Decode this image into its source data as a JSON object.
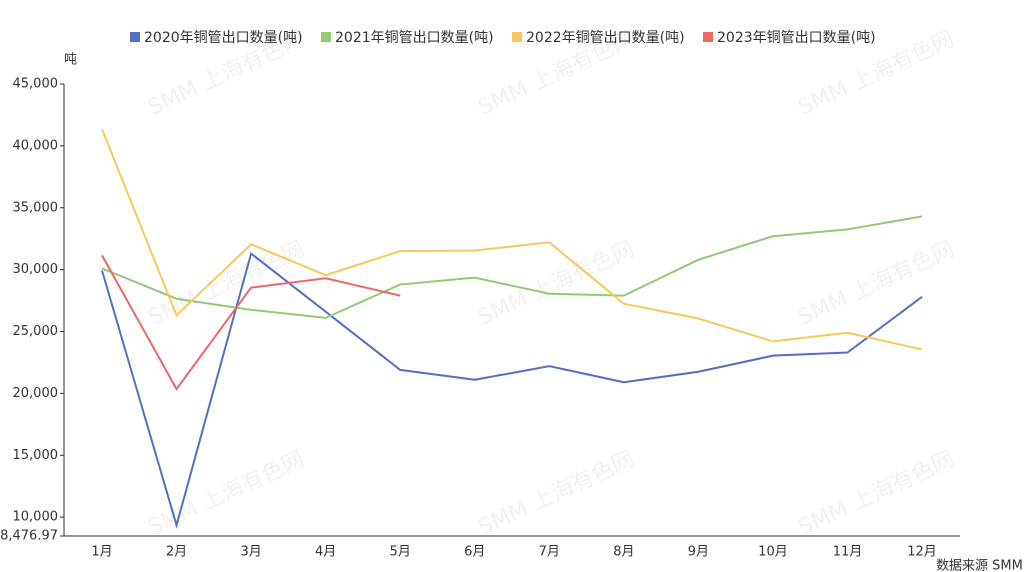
{
  "chart_data": {
    "type": "line",
    "y_axis_label": "吨",
    "source": "数据来源 SMM",
    "watermark": "SMM 上海有色网",
    "categories": [
      "1月",
      "2月",
      "3月",
      "4月",
      "5月",
      "6月",
      "7月",
      "8月",
      "9月",
      "10月",
      "11月",
      "12月"
    ],
    "series": [
      {
        "name": "2020年铜管出口数量(吨)",
        "color": "#5470c6",
        "values": [
          29930,
          9350,
          31300,
          26600,
          21900,
          21100,
          22200,
          20900,
          21750,
          23050,
          23300,
          27800
        ]
      },
      {
        "name": "2021年铜管出口数量(吨)",
        "color": "#91cc75",
        "values": [
          30100,
          27650,
          26750,
          26100,
          28800,
          29350,
          28050,
          27900,
          30800,
          32700,
          33250,
          34300
        ]
      },
      {
        "name": "2022年铜管出口数量(吨)",
        "color": "#fac858",
        "values": [
          41350,
          26300,
          32050,
          29550,
          31500,
          31550,
          32200,
          27250,
          26050,
          24200,
          24900,
          23550
        ]
      },
      {
        "name": "2023年铜管出口数量(吨)",
        "color": "#ee6666",
        "values": [
          31150,
          20350,
          28550,
          29300,
          27900,
          null,
          null,
          null,
          null,
          null,
          null,
          null
        ]
      }
    ],
    "ylim": [
      8476.97,
      45000
    ],
    "yticks": [
      {
        "value": 8476.97,
        "label": "8,476.97"
      },
      {
        "value": 10000,
        "label": "10,000"
      },
      {
        "value": 15000,
        "label": "15,000"
      },
      {
        "value": 20000,
        "label": "20,000"
      },
      {
        "value": 25000,
        "label": "25,000"
      },
      {
        "value": 30000,
        "label": "30,000"
      },
      {
        "value": 35000,
        "label": "35,000"
      },
      {
        "value": 40000,
        "label": "40,000"
      },
      {
        "value": 45000,
        "label": "45,000"
      }
    ],
    "legend": "top"
  }
}
